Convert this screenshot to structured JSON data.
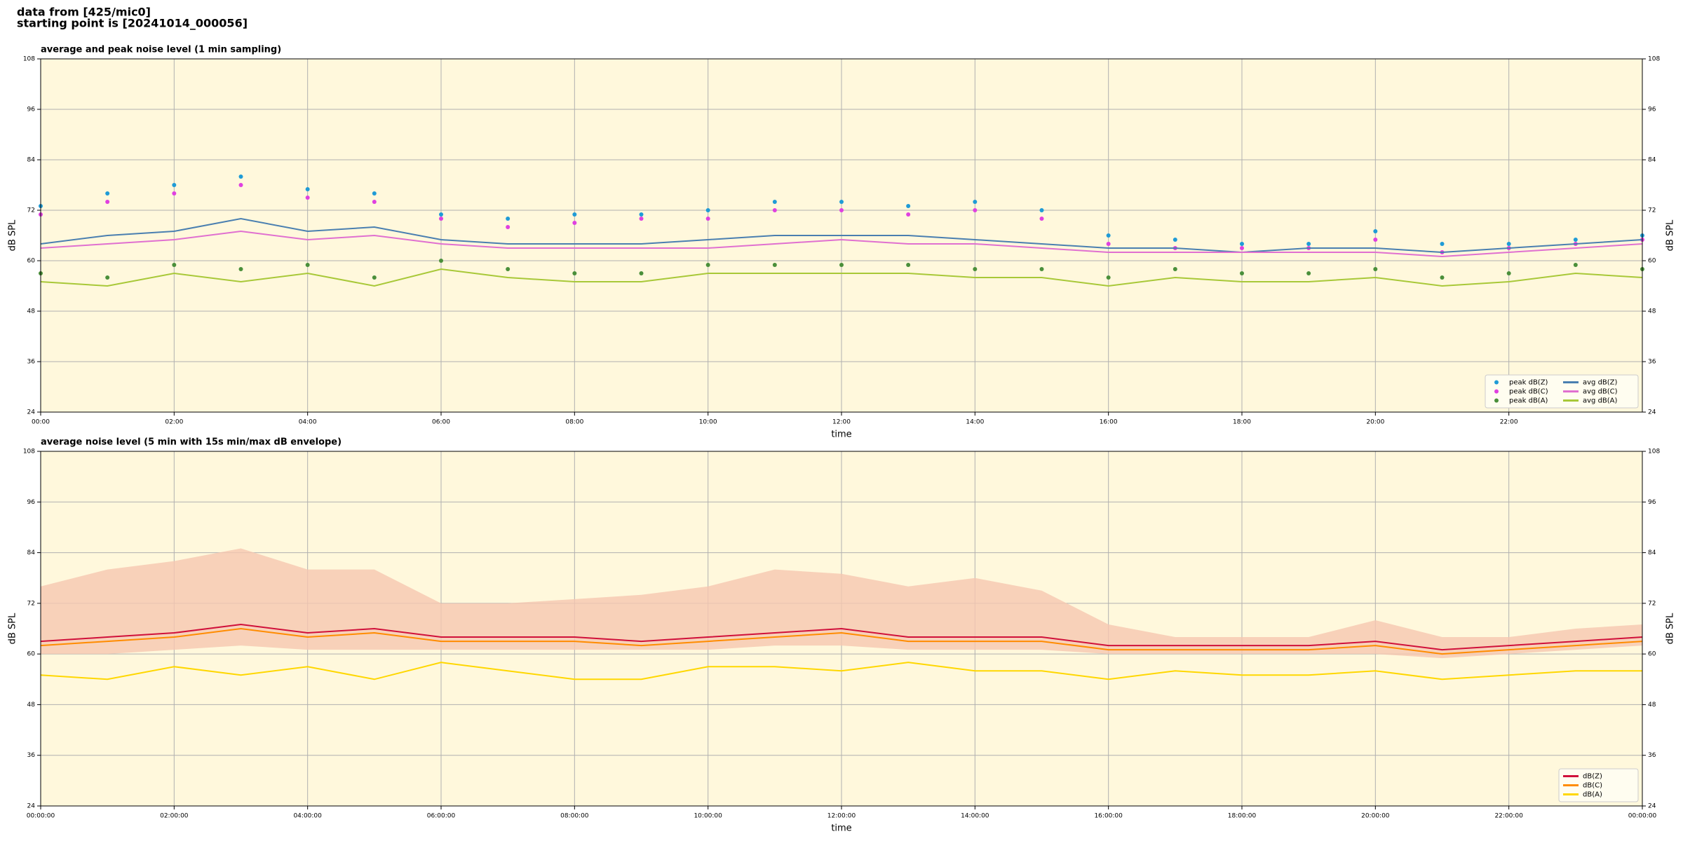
{
  "suptitle": [
    "data from [425/mic0]",
    "starting point is [20241014_000056]"
  ],
  "chart_data": [
    {
      "type": "line",
      "title": "average and peak noise level (1 min sampling)",
      "xlabel": "time",
      "ylabel": "dB SPL",
      "background": "#fff8dc",
      "grid": true,
      "legend": "lower right",
      "legend_columns": 2,
      "xlim": [
        0,
        24
      ],
      "ylim": [
        24,
        108
      ],
      "yticks": [
        24,
        36,
        48,
        60,
        72,
        84,
        96,
        108
      ],
      "xticks": [
        {
          "value": 0,
          "label": "00:00"
        },
        {
          "value": 2,
          "label": "02:00"
        },
        {
          "value": 4,
          "label": "04:00"
        },
        {
          "value": 6,
          "label": "06:00"
        },
        {
          "value": 8,
          "label": "08:00"
        },
        {
          "value": 10,
          "label": "10:00"
        },
        {
          "value": 12,
          "label": "12:00"
        },
        {
          "value": 14,
          "label": "14:00"
        },
        {
          "value": 16,
          "label": "16:00"
        },
        {
          "value": 18,
          "label": "18:00"
        },
        {
          "value": 20,
          "label": "20:00"
        },
        {
          "value": 22,
          "label": "22:00"
        }
      ],
      "x": [
        0,
        1,
        2,
        3,
        4,
        5,
        6,
        7,
        8,
        9,
        10,
        11,
        12,
        13,
        14,
        15,
        16,
        17,
        18,
        19,
        20,
        21,
        22,
        23,
        24
      ],
      "series": [
        {
          "name": "peak dB(Z)",
          "style": "scatter",
          "color": "#1f9bd6",
          "values": [
            73,
            76,
            78,
            80,
            77,
            76,
            71,
            70,
            71,
            71,
            72,
            74,
            74,
            73,
            74,
            72,
            66,
            65,
            64,
            64,
            67,
            64,
            64,
            65,
            66
          ]
        },
        {
          "name": "peak dB(C)",
          "style": "scatter",
          "color": "#e040e0",
          "values": [
            71,
            74,
            76,
            78,
            75,
            74,
            70,
            68,
            69,
            70,
            70,
            72,
            72,
            71,
            72,
            70,
            64,
            63,
            63,
            63,
            65,
            62,
            63,
            64,
            65
          ]
        },
        {
          "name": "peak dB(A)",
          "style": "scatter",
          "color": "#4a8f3a",
          "values": [
            57,
            56,
            59,
            58,
            59,
            56,
            60,
            58,
            57,
            57,
            59,
            59,
            59,
            59,
            58,
            58,
            56,
            58,
            57,
            57,
            58,
            56,
            57,
            59,
            58
          ]
        },
        {
          "name": "avg dB(Z)",
          "style": "line",
          "color": "#4a7fb0",
          "values": [
            64,
            66,
            67,
            70,
            67,
            68,
            65,
            64,
            64,
            64,
            65,
            66,
            66,
            66,
            65,
            64,
            63,
            63,
            62,
            63,
            63,
            62,
            63,
            64,
            65
          ]
        },
        {
          "name": "avg dB(C)",
          "style": "line",
          "color": "#e070d0",
          "values": [
            63,
            64,
            65,
            67,
            65,
            66,
            64,
            63,
            63,
            63,
            63,
            64,
            65,
            64,
            64,
            63,
            62,
            62,
            62,
            62,
            62,
            61,
            62,
            63,
            64
          ]
        },
        {
          "name": "avg dB(A)",
          "style": "line",
          "color": "#a8c838",
          "values": [
            55,
            54,
            57,
            55,
            57,
            54,
            58,
            56,
            55,
            55,
            57,
            57,
            57,
            57,
            56,
            56,
            54,
            56,
            55,
            55,
            56,
            54,
            55,
            57,
            56
          ]
        }
      ]
    },
    {
      "type": "line",
      "title": "average noise level (5 min with 15s min/max dB envelope)",
      "xlabel": "time",
      "ylabel": "dB SPL",
      "background": "#fff8dc",
      "grid": true,
      "legend": "lower right",
      "legend_columns": 1,
      "xlim": [
        0,
        24
      ],
      "ylim": [
        24,
        108
      ],
      "yticks": [
        24,
        36,
        48,
        60,
        72,
        84,
        96,
        108
      ],
      "xticks": [
        {
          "value": 0,
          "label": "00:00:00"
        },
        {
          "value": 2,
          "label": "02:00:00"
        },
        {
          "value": 4,
          "label": "04:00:00"
        },
        {
          "value": 6,
          "label": "06:00:00"
        },
        {
          "value": 8,
          "label": "08:00:00"
        },
        {
          "value": 10,
          "label": "10:00:00"
        },
        {
          "value": 12,
          "label": "12:00:00"
        },
        {
          "value": 14,
          "label": "14:00:00"
        },
        {
          "value": 16,
          "label": "16:00:00"
        },
        {
          "value": 18,
          "label": "18:00:00"
        },
        {
          "value": 20,
          "label": "20:00:00"
        },
        {
          "value": 22,
          "label": "22:00:00"
        },
        {
          "value": 24,
          "label": "00:00:00"
        }
      ],
      "x": [
        0,
        1,
        2,
        3,
        4,
        5,
        6,
        7,
        8,
        9,
        10,
        11,
        12,
        13,
        14,
        15,
        16,
        17,
        18,
        19,
        20,
        21,
        22,
        23,
        24
      ],
      "envelope": {
        "color": "#f6c7b0",
        "upper": [
          76,
          80,
          82,
          85,
          80,
          80,
          72,
          72,
          73,
          74,
          76,
          80,
          79,
          76,
          78,
          75,
          67,
          64,
          64,
          64,
          68,
          64,
          64,
          66,
          67
        ],
        "lower": [
          60,
          60,
          61,
          62,
          61,
          61,
          61,
          61,
          61,
          61,
          61,
          62,
          62,
          61,
          61,
          61,
          60,
          60,
          60,
          60,
          60,
          59,
          60,
          61,
          62
        ]
      },
      "series": [
        {
          "name": "dB(Z)",
          "style": "line",
          "color": "#d0103a",
          "values": [
            63,
            64,
            65,
            67,
            65,
            66,
            64,
            64,
            64,
            63,
            64,
            65,
            66,
            64,
            64,
            64,
            62,
            62,
            62,
            62,
            63,
            61,
            62,
            63,
            64
          ]
        },
        {
          "name": "dB(C)",
          "style": "line",
          "color": "#ff8c00",
          "values": [
            62,
            63,
            64,
            66,
            64,
            65,
            63,
            63,
            63,
            62,
            63,
            64,
            65,
            63,
            63,
            63,
            61,
            61,
            61,
            61,
            62,
            60,
            61,
            62,
            63
          ]
        },
        {
          "name": "dB(A)",
          "style": "line",
          "color": "#ffd700",
          "values": [
            55,
            54,
            57,
            55,
            57,
            54,
            58,
            56,
            54,
            54,
            57,
            57,
            56,
            58,
            56,
            56,
            54,
            56,
            55,
            55,
            56,
            54,
            55,
            56,
            56
          ]
        }
      ]
    }
  ]
}
